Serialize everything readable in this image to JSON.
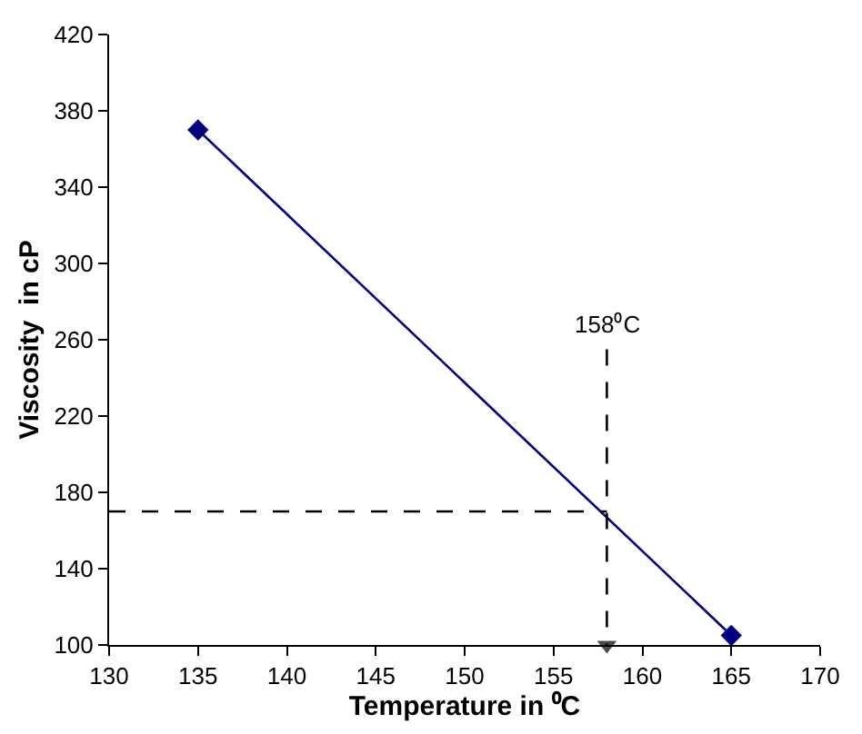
{
  "chart_data": {
    "type": "line",
    "xlabel": "Temperature in ⁰C",
    "ylabel": "Viscosity  in cP",
    "xlim": [
      130,
      170
    ],
    "xticks": [
      130,
      135,
      140,
      145,
      150,
      155,
      160,
      165,
      170
    ],
    "ylim": [
      100,
      420
    ],
    "yticks": [
      100,
      140,
      180,
      220,
      260,
      300,
      340,
      380,
      420
    ],
    "series": [
      {
        "x": [
          135,
          165
        ],
        "values": [
          370,
          105
        ],
        "color": "#000080",
        "marker": "diamond",
        "line_style": "solid"
      },
      {
        "x": [
          130,
          158
        ],
        "values": [
          170,
          170
        ],
        "color": "#000000",
        "marker": "none",
        "line_style": "dashed"
      },
      {
        "x": [
          158,
          158
        ],
        "values": [
          255,
          100
        ],
        "color": "#000000",
        "marker": "triangle",
        "line_style": "dashed"
      }
    ],
    "annotations": [
      {
        "text": "158⁰C",
        "x": 158,
        "y": 255
      }
    ]
  }
}
